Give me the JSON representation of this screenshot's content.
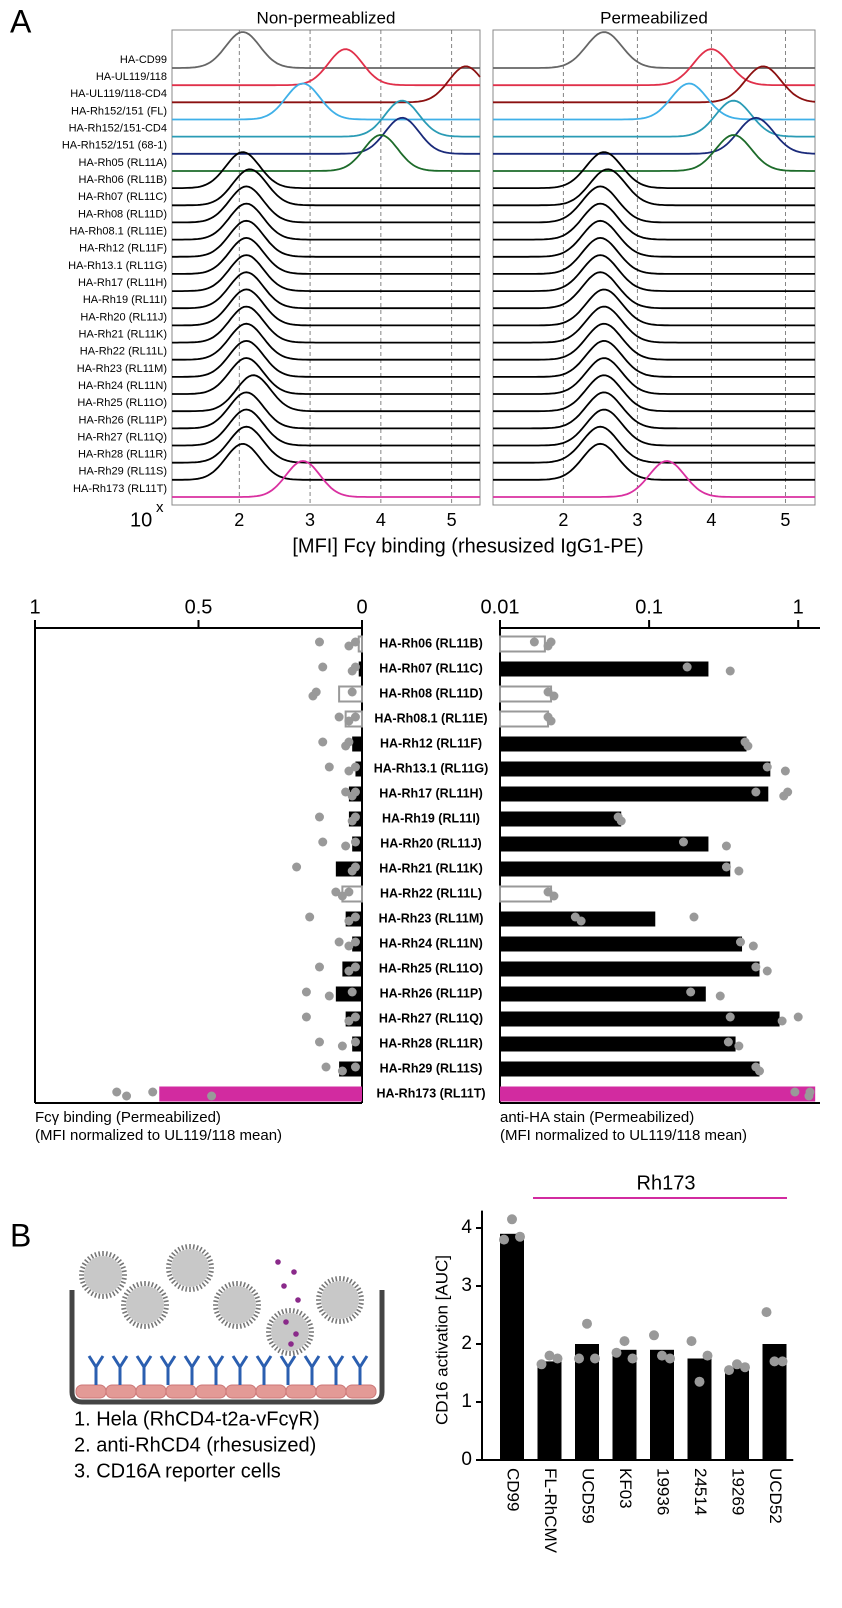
{
  "panel_a_label": "A",
  "panel_b_label": "B",
  "histograms": {
    "type": "ridgeline",
    "titles": [
      "Non-permeablized",
      "Permeabilized"
    ],
    "x_axis_label": "[MFI] Fcγ binding (rhesusized IgG1-PE)",
    "x_base": "10",
    "x_exponent": "x",
    "xlim": [
      1.05,
      5.4
    ],
    "xticks": [
      2,
      3,
      4,
      5
    ],
    "grid": true,
    "samples": [
      {
        "name": "HA-CD99",
        "color": "#666666",
        "peaks": [
          2.05,
          2.55
        ]
      },
      {
        "name": "HA-UL119/118",
        "color": "#e0304a",
        "peaks": [
          3.5,
          4.0
        ]
      },
      {
        "name": "HA-UL119/118-CD4",
        "color": "#8b1010",
        "peaks": [
          5.2,
          4.7
        ]
      },
      {
        "name": "HA-Rh152/151 (FL)",
        "color": "#3fb0e8",
        "peaks": [
          2.9,
          3.7
        ]
      },
      {
        "name": "HA-Rh152/151-CD4",
        "color": "#2a9bb5",
        "peaks": [
          4.3,
          4.3
        ]
      },
      {
        "name": "HA-Rh152/151 (68-1)",
        "color": "#1a2a7a",
        "peaks": [
          4.3,
          4.6
        ]
      },
      {
        "name": "HA-Rh05  (RL11A)",
        "color": "#1d6b2a",
        "peaks": [
          4.0,
          4.3
        ]
      },
      {
        "name": "HA-Rh06  (RL11B)",
        "color": "#000000",
        "peaks": [
          2.05,
          2.55
        ]
      },
      {
        "name": "HA-Rh07  (RL11C)",
        "color": "#000000",
        "peaks": [
          2.15,
          2.6
        ]
      },
      {
        "name": "HA-Rh08  (RL11D)",
        "color": "#000000",
        "peaks": [
          2.1,
          2.5
        ]
      },
      {
        "name": "HA-Rh08.1  (RL11E)",
        "color": "#000000",
        "peaks": [
          2.1,
          2.5
        ]
      },
      {
        "name": "HA-Rh12  (RL11F)",
        "color": "#000000",
        "peaks": [
          2.1,
          2.5
        ]
      },
      {
        "name": "HA-Rh13.1  (RL11G)",
        "color": "#000000",
        "peaks": [
          2.1,
          2.5
        ]
      },
      {
        "name": "HA-Rh17  (RL11H)",
        "color": "#000000",
        "peaks": [
          2.1,
          2.5
        ]
      },
      {
        "name": "HA-Rh19    (RL11I)",
        "color": "#000000",
        "peaks": [
          2.1,
          2.5
        ]
      },
      {
        "name": "HA-Rh20   (RL11J)",
        "color": "#000000",
        "peaks": [
          2.1,
          2.55
        ]
      },
      {
        "name": "HA-Rh21  (RL11K)",
        "color": "#000000",
        "peaks": [
          2.1,
          2.55
        ]
      },
      {
        "name": "HA-Rh22  (RL11L)",
        "color": "#000000",
        "peaks": [
          2.1,
          2.55
        ]
      },
      {
        "name": "HA-Rh23  (RL11M)",
        "color": "#000000",
        "peaks": [
          2.1,
          2.55
        ]
      },
      {
        "name": "HA-Rh24  (RL11N)",
        "color": "#000000",
        "peaks": [
          2.1,
          2.55
        ]
      },
      {
        "name": "HA-Rh25  (RL11O)",
        "color": "#000000",
        "peaks": [
          2.2,
          2.55
        ]
      },
      {
        "name": "HA-Rh26  (RL11P)",
        "color": "#000000",
        "peaks": [
          2.1,
          2.55
        ]
      },
      {
        "name": "HA-Rh27  (RL11Q)",
        "color": "#000000",
        "peaks": [
          2.1,
          2.55
        ]
      },
      {
        "name": "HA-Rh28  (RL11R)",
        "color": "#000000",
        "peaks": [
          2.1,
          2.5
        ]
      },
      {
        "name": "HA-Rh29  (RL11S)",
        "color": "#000000",
        "peaks": [
          2.05,
          2.5
        ]
      },
      {
        "name": "HA-Rh173  (RL11T)",
        "color": "#d930a0",
        "peaks": [
          2.9,
          3.4
        ]
      }
    ]
  },
  "binding_bars": {
    "type": "bar",
    "left_axis": {
      "xlim": [
        0,
        1
      ],
      "xticks": [
        1,
        0.5,
        0
      ],
      "title_lines": [
        "Fcγ binding (Permeabilized)",
        "(MFI normalized  to UL119/118 mean)"
      ]
    },
    "right_axis": {
      "log": true,
      "xlim": [
        0.01,
        1.4
      ],
      "xticks": [
        0.01,
        0.1,
        1
      ],
      "title_lines": [
        "anti-HA stain (Permeabilized)",
        "(MFI normalized to UL119/118 mean)"
      ]
    },
    "rows": [
      {
        "name": "HA-Rh06 (RL11B)",
        "color": "#999999",
        "filled": false,
        "fc_value": 0.01,
        "fc_points": [
          0.13,
          0.04,
          0.02
        ],
        "ha_value": 0.02,
        "ha_points": [
          0.017,
          0.021,
          0.022
        ]
      },
      {
        "name": "HA-Rh07 (RL11C)",
        "color": "#000000",
        "filled": true,
        "fc_value": 0.01,
        "fc_points": [
          0.12,
          0.03,
          0.02
        ],
        "ha_value": 0.25,
        "ha_points": [
          0.18,
          0.35
        ]
      },
      {
        "name": "HA-Rh08 (RL11D)",
        "color": "#999999",
        "filled": false,
        "fc_value": 0.07,
        "fc_points": [
          0.14,
          0.15,
          0.03
        ],
        "ha_value": 0.022,
        "ha_points": [
          0.021,
          0.023
        ]
      },
      {
        "name": "HA-Rh08.1 (RL11E)",
        "color": "#999999",
        "filled": false,
        "fc_value": 0.05,
        "fc_points": [
          0.07,
          0.04,
          0.02
        ],
        "ha_value": 0.021,
        "ha_points": [
          0.021,
          0.022
        ]
      },
      {
        "name": "HA-Rh12 (RL11F)",
        "color": "#000000",
        "filled": true,
        "fc_value": 0.03,
        "fc_points": [
          0.12,
          0.05,
          0.04
        ],
        "ha_value": 0.45,
        "ha_points": [
          0.44,
          0.46
        ]
      },
      {
        "name": "HA-Rh13.1 (RL11G)",
        "color": "#000000",
        "filled": true,
        "fc_value": 0.02,
        "fc_points": [
          0.1,
          0.04,
          0.02
        ],
        "ha_value": 0.65,
        "ha_points": [
          0.62,
          0.82
        ]
      },
      {
        "name": "HA-Rh17 (RL11H)",
        "color": "#000000",
        "filled": true,
        "fc_value": 0.04,
        "fc_points": [
          0.05,
          0.03,
          0.02
        ],
        "ha_value": 0.63,
        "ha_points": [
          0.52,
          0.8,
          0.85
        ]
      },
      {
        "name": "HA-Rh19 (RL11I)",
        "color": "#000000",
        "filled": true,
        "fc_value": 0.04,
        "fc_points": [
          0.13,
          0.03,
          0.02
        ],
        "ha_value": 0.065,
        "ha_points": [
          0.062,
          0.065
        ]
      },
      {
        "name": "HA-Rh20 (RL11J)",
        "color": "#000000",
        "filled": true,
        "fc_value": 0.03,
        "fc_points": [
          0.12,
          0.05,
          0.02
        ],
        "ha_value": 0.25,
        "ha_points": [
          0.17,
          0.33
        ]
      },
      {
        "name": "HA-Rh21 (RL11K)",
        "color": "#000000",
        "filled": true,
        "fc_value": 0.08,
        "fc_points": [
          0.2,
          0.03,
          0.02
        ],
        "ha_value": 0.35,
        "ha_points": [
          0.33,
          0.4
        ]
      },
      {
        "name": "HA-Rh22 (RL11L)",
        "color": "#999999",
        "filled": false,
        "fc_value": 0.06,
        "fc_points": [
          0.08,
          0.06,
          0.04
        ],
        "ha_value": 0.022,
        "ha_points": [
          0.021,
          0.023
        ]
      },
      {
        "name": "HA-Rh23 (RL11M)",
        "color": "#000000",
        "filled": true,
        "fc_value": 0.05,
        "fc_points": [
          0.16,
          0.04,
          0.02
        ],
        "ha_value": 0.11,
        "ha_points": [
          0.032,
          0.035,
          0.2
        ]
      },
      {
        "name": "HA-Rh24 (RL11N)",
        "color": "#000000",
        "filled": true,
        "fc_value": 0.03,
        "fc_points": [
          0.07,
          0.04,
          0.02
        ],
        "ha_value": 0.42,
        "ha_points": [
          0.41,
          0.5
        ]
      },
      {
        "name": "HA-Rh25 (RL11O)",
        "color": "#000000",
        "filled": true,
        "fc_value": 0.06,
        "fc_points": [
          0.13,
          0.04,
          0.02
        ],
        "ha_value": 0.55,
        "ha_points": [
          0.52,
          0.62
        ]
      },
      {
        "name": "HA-Rh26 (RL11P)",
        "color": "#000000",
        "filled": true,
        "fc_value": 0.08,
        "fc_points": [
          0.17,
          0.1,
          0.03
        ],
        "ha_value": 0.24,
        "ha_points": [
          0.19,
          0.3
        ]
      },
      {
        "name": "HA-Rh27 (RL11Q)",
        "color": "#000000",
        "filled": true,
        "fc_value": 0.05,
        "fc_points": [
          0.17,
          0.04,
          0.02
        ],
        "ha_value": 0.75,
        "ha_points": [
          0.35,
          0.78,
          1.0
        ]
      },
      {
        "name": "HA-Rh28 (RL11R)",
        "color": "#000000",
        "filled": true,
        "fc_value": 0.03,
        "fc_points": [
          0.13,
          0.06,
          0.02
        ],
        "ha_value": 0.38,
        "ha_points": [
          0.34,
          0.4
        ]
      },
      {
        "name": "HA-Rh29 (RL11S)",
        "color": "#000000",
        "filled": true,
        "fc_value": 0.07,
        "fc_points": [
          0.11,
          0.06,
          0.02
        ],
        "ha_value": 0.55,
        "ha_points": [
          0.52,
          0.55
        ]
      },
      {
        "name": "HA-Rh173 (RL11T)",
        "color": "#d22ba0",
        "filled": true,
        "fc_value": 0.62,
        "fc_points": [
          0.75,
          0.72,
          0.64,
          0.46
        ],
        "ha_value": 1.3,
        "ha_points": [
          0.95,
          1.18,
          1.2
        ]
      }
    ]
  },
  "diagram_labels": [
    {
      "text": "1. Hela (RhCD4-t2a-vFcγR)",
      "color": "#e39a96"
    },
    {
      "text": "2. anti-RhCD4 (rhesusized)",
      "color": "#27389a"
    },
    {
      "text": "3. CD16A reporter cells",
      "color": "#8a8a8a"
    }
  ],
  "chart_data": {
    "type": "bar",
    "y_label": "CD16 activation [AUC]",
    "annotation": "Rh173",
    "annotation_color": "#d22ba0",
    "color": "#000000",
    "point_color": "#999999",
    "categories": [
      "CD99",
      "FL-RhCMV",
      "UCD59",
      "KF03",
      "19936",
      "24514",
      "19269",
      "UCD52"
    ],
    "values": [
      3.9,
      1.7,
      2.0,
      1.9,
      1.9,
      1.75,
      1.6,
      2.0
    ],
    "points": [
      [
        3.8,
        4.15,
        3.85
      ],
      [
        1.65,
        1.8,
        1.75
      ],
      [
        1.75,
        2.35,
        1.75
      ],
      [
        1.85,
        2.05,
        1.75
      ],
      [
        2.15,
        1.8,
        1.75
      ],
      [
        2.05,
        1.35,
        1.8
      ],
      [
        1.55,
        1.65,
        1.6
      ],
      [
        2.55,
        1.7,
        1.7
      ]
    ],
    "ylim": [
      0,
      4.3
    ],
    "yticks": [
      0,
      1,
      2,
      3,
      4
    ]
  }
}
